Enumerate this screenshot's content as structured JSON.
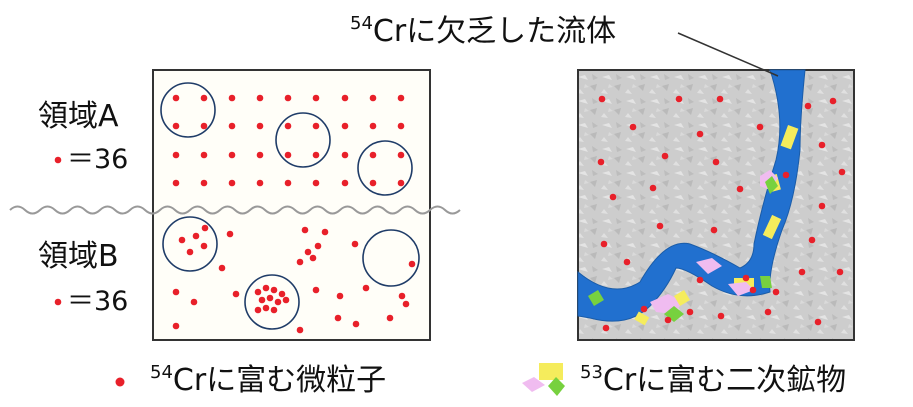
{
  "fluid_label_sup": "54",
  "fluid_label_text": "Crに欠乏した流体",
  "region_a": {
    "label": "領域A",
    "count_text": "＝36"
  },
  "region_b": {
    "label": "領域B",
    "count_text": "＝36"
  },
  "legend": {
    "particle_sup": "54",
    "particle_text": "Crに富む微粒子",
    "mineral_sup": "53",
    "mineral_text": "Crに富む二次鉱物"
  },
  "colors": {
    "particle": "#e8202a",
    "circle": "#1f3c68",
    "fluid": "#2170cf",
    "rock": "#cccccc",
    "mineral_yellow": "#f5ec5c",
    "mineral_pink": "#f0bcf0",
    "mineral_green": "#77d13f"
  }
}
